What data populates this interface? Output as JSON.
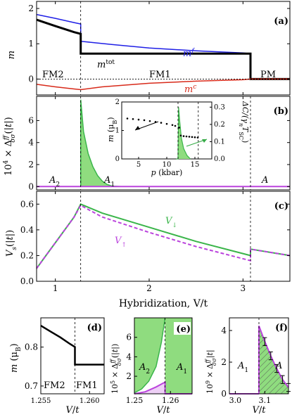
{
  "colors": {
    "blue": "#1f1fe6",
    "red": "#d82a1a",
    "green": "#3ab54a",
    "green_fill": "#8fdc7f",
    "purple": "#bb44dd",
    "black": "#000000",
    "inset_arrow": "#33aa44"
  },
  "shared": {
    "x_axis_label": "Hybridization, V/t",
    "x_ticks": [
      "1",
      "2",
      "3"
    ],
    "x_range": [
      0.8,
      3.5
    ],
    "transitions": [
      1.27,
      3.08
    ]
  },
  "chart_data": [
    {
      "type": "line",
      "panel": "(a)",
      "ylabel": "m (μB)",
      "yticks": [
        "0",
        "1",
        "2"
      ],
      "ylim": [
        -0.45,
        2.2
      ],
      "phase_labels": [
        "FM2",
        "FM1",
        "PM"
      ],
      "series": [
        {
          "name": "m^f",
          "label": "m",
          "sup": "f",
          "x": [
            0.8,
            1.0,
            1.2,
            1.27,
            1.27,
            1.6,
            2.0,
            2.5,
            3.0,
            3.08,
            3.08,
            3.5
          ],
          "y": [
            1.83,
            1.72,
            1.6,
            1.56,
            1.07,
            0.98,
            0.88,
            0.8,
            0.74,
            0.72,
            0.0,
            0.0
          ]
        },
        {
          "name": "m^tot",
          "label": "m",
          "sup": "tot",
          "x": [
            0.8,
            1.0,
            1.2,
            1.27,
            1.27,
            3.08,
            3.08,
            3.5
          ],
          "y": [
            1.68,
            1.5,
            1.33,
            1.28,
            0.72,
            0.72,
            0.0,
            0.0
          ]
        },
        {
          "name": "m^c",
          "label": "m",
          "sup": "c",
          "x": [
            0.8,
            1.0,
            1.2,
            1.27,
            1.5,
            2.0,
            2.5,
            3.0,
            3.08,
            3.08,
            3.5
          ],
          "y": [
            -0.15,
            -0.22,
            -0.28,
            -0.3,
            -0.22,
            -0.12,
            -0.06,
            -0.02,
            0.0,
            0.0,
            0.0
          ]
        }
      ]
    },
    {
      "type": "area",
      "panel": "(b)",
      "ylabel": "10⁴ × Δσσ^ff(|t|)",
      "yticks": [
        "0",
        "2",
        "4",
        "6"
      ],
      "ylim": [
        -0.3,
        8.2
      ],
      "region_labels": [
        {
          "base": "A",
          "sub": "2"
        },
        {
          "base": "A",
          "sub": "1"
        },
        {
          "base": "A",
          "sub": ""
        }
      ],
      "series": [
        {
          "name": "Δ",
          "x": [
            1.27,
            1.27,
            1.3,
            1.35,
            1.4,
            1.45,
            1.5,
            1.55,
            1.6,
            1.7
          ],
          "y": [
            0.0,
            7.9,
            5.0,
            3.0,
            1.8,
            1.0,
            0.5,
            0.2,
            0.05,
            0.0
          ]
        }
      ],
      "inset": {
        "xlabel": "p (kbar)",
        "ylabel": "m (μB)",
        "y2label": "ΔC/(γn TSC)",
        "xticks": [
          "5",
          "10",
          "15"
        ],
        "yticks": [
          "0",
          "1",
          "2"
        ],
        "y2ticks": [
          "0.0",
          "0.1",
          "0.2",
          "0.3"
        ],
        "xlim": [
          2,
          18
        ],
        "ylim": [
          0,
          2
        ],
        "transitions": [
          12.0,
          15.6
        ],
        "m_points": {
          "x": [
            3,
            4,
            5,
            6,
            7,
            8,
            9,
            10,
            11,
            11.5,
            12.2,
            12.5,
            13,
            13.5,
            14,
            14.5,
            15,
            15.5
          ],
          "y": [
            1.42,
            1.4,
            1.38,
            1.36,
            1.33,
            1.3,
            1.27,
            1.23,
            1.19,
            1.16,
            1.1,
            0.82,
            0.8,
            0.79,
            0.78,
            0.77,
            0.76,
            0.75
          ]
        },
        "dC": {
          "x": [
            11.7,
            12.0,
            12.1,
            12.3,
            12.6,
            13.0,
            13.6,
            14.2
          ],
          "y": [
            0.0,
            0.0,
            0.3,
            0.22,
            0.12,
            0.06,
            0.02,
            0.0
          ]
        }
      }
    },
    {
      "type": "line",
      "panel": "(c)",
      "ylabel": "Vs(|t|)",
      "yticks": [
        "0.0",
        "0.2",
        "0.4",
        "0.6"
      ],
      "ylim": [
        0,
        0.7
      ],
      "series": [
        {
          "name": "V↓",
          "label": "V",
          "sub": "↓",
          "x": [
            0.8,
            0.9,
            1.0,
            1.1,
            1.2,
            1.27,
            1.5,
            2.0,
            2.5,
            3.08,
            3.08,
            3.5
          ],
          "y": [
            0.1,
            0.2,
            0.3,
            0.4,
            0.5,
            0.6,
            0.53,
            0.42,
            0.31,
            0.2,
            0.25,
            0.2
          ]
        },
        {
          "name": "V↑",
          "label": "V",
          "sub": "↑",
          "x": [
            0.8,
            0.9,
            1.0,
            1.1,
            1.2,
            1.27,
            1.5,
            2.0,
            2.5,
            3.08,
            3.08,
            3.5
          ],
          "y": [
            0.1,
            0.2,
            0.3,
            0.4,
            0.5,
            0.59,
            0.5,
            0.38,
            0.27,
            0.16,
            0.25,
            0.2
          ]
        }
      ]
    },
    {
      "type": "line",
      "panel": "(d)",
      "ylabel": "m (μB)",
      "xlabel": "V/t",
      "xticks": [
        "1.255",
        "1.260"
      ],
      "yticks": [
        "0.7",
        "0.8"
      ],
      "xlim": [
        1.255,
        1.2615
      ],
      "ylim": [
        0.68,
        0.875
      ],
      "phase_labels": [
        "FM2",
        "FM1"
      ],
      "series": [
        {
          "name": "m",
          "x": [
            1.255,
            1.256,
            1.257,
            1.258,
            1.2585,
            1.2585,
            1.2615
          ],
          "y": [
            0.855,
            0.84,
            0.825,
            0.808,
            0.8,
            0.755,
            0.755
          ]
        }
      ]
    },
    {
      "type": "area",
      "panel": "(e)",
      "ylabel": "10⁵ × Δσσ^ff(|t|)",
      "xlabel": "V/t",
      "xticks": [
        "1.25",
        "1.26"
      ],
      "yticks": [
        "2",
        "4",
        "6"
      ],
      "xlim": [
        1.25,
        1.266
      ],
      "ylim": [
        0.2,
        8
      ],
      "region_labels": [
        {
          "base": "A",
          "sub": "2"
        },
        {
          "base": "A",
          "sub": "1"
        }
      ],
      "series": [
        {
          "name": "A2",
          "x": [
            1.25,
            1.252,
            1.254,
            1.256,
            1.2575,
            1.2585
          ],
          "y": [
            0.3,
            0.7,
            1.5,
            3.0,
            5.5,
            8.0
          ]
        },
        {
          "name": "A1",
          "x": [
            1.25,
            1.253,
            1.256,
            1.2585,
            1.2585,
            1.266
          ],
          "y": [
            0.2,
            0.4,
            0.9,
            1.4,
            0.2,
            0.2
          ]
        }
      ]
    },
    {
      "type": "area",
      "panel": "(f)",
      "ylabel": "10⁹ × Δσσ^ff(|t|)",
      "xlabel": "V/t",
      "xticks": [
        "3.0",
        "3.1"
      ],
      "yticks": [
        "0",
        "2",
        "4"
      ],
      "xlim": [
        2.98,
        3.18
      ],
      "ylim": [
        0,
        4.8
      ],
      "region_labels": [
        {
          "base": "A",
          "sub": "1"
        },
        {
          "base": "A",
          "sub": ""
        }
      ],
      "series": [
        {
          "name": "Δ",
          "x": [
            3.08,
            3.08,
            3.1,
            3.12,
            3.14,
            3.16,
            3.18
          ],
          "y": [
            0.0,
            4.3,
            3.3,
            2.4,
            1.6,
            0.9,
            0.4
          ]
        }
      ]
    }
  ]
}
